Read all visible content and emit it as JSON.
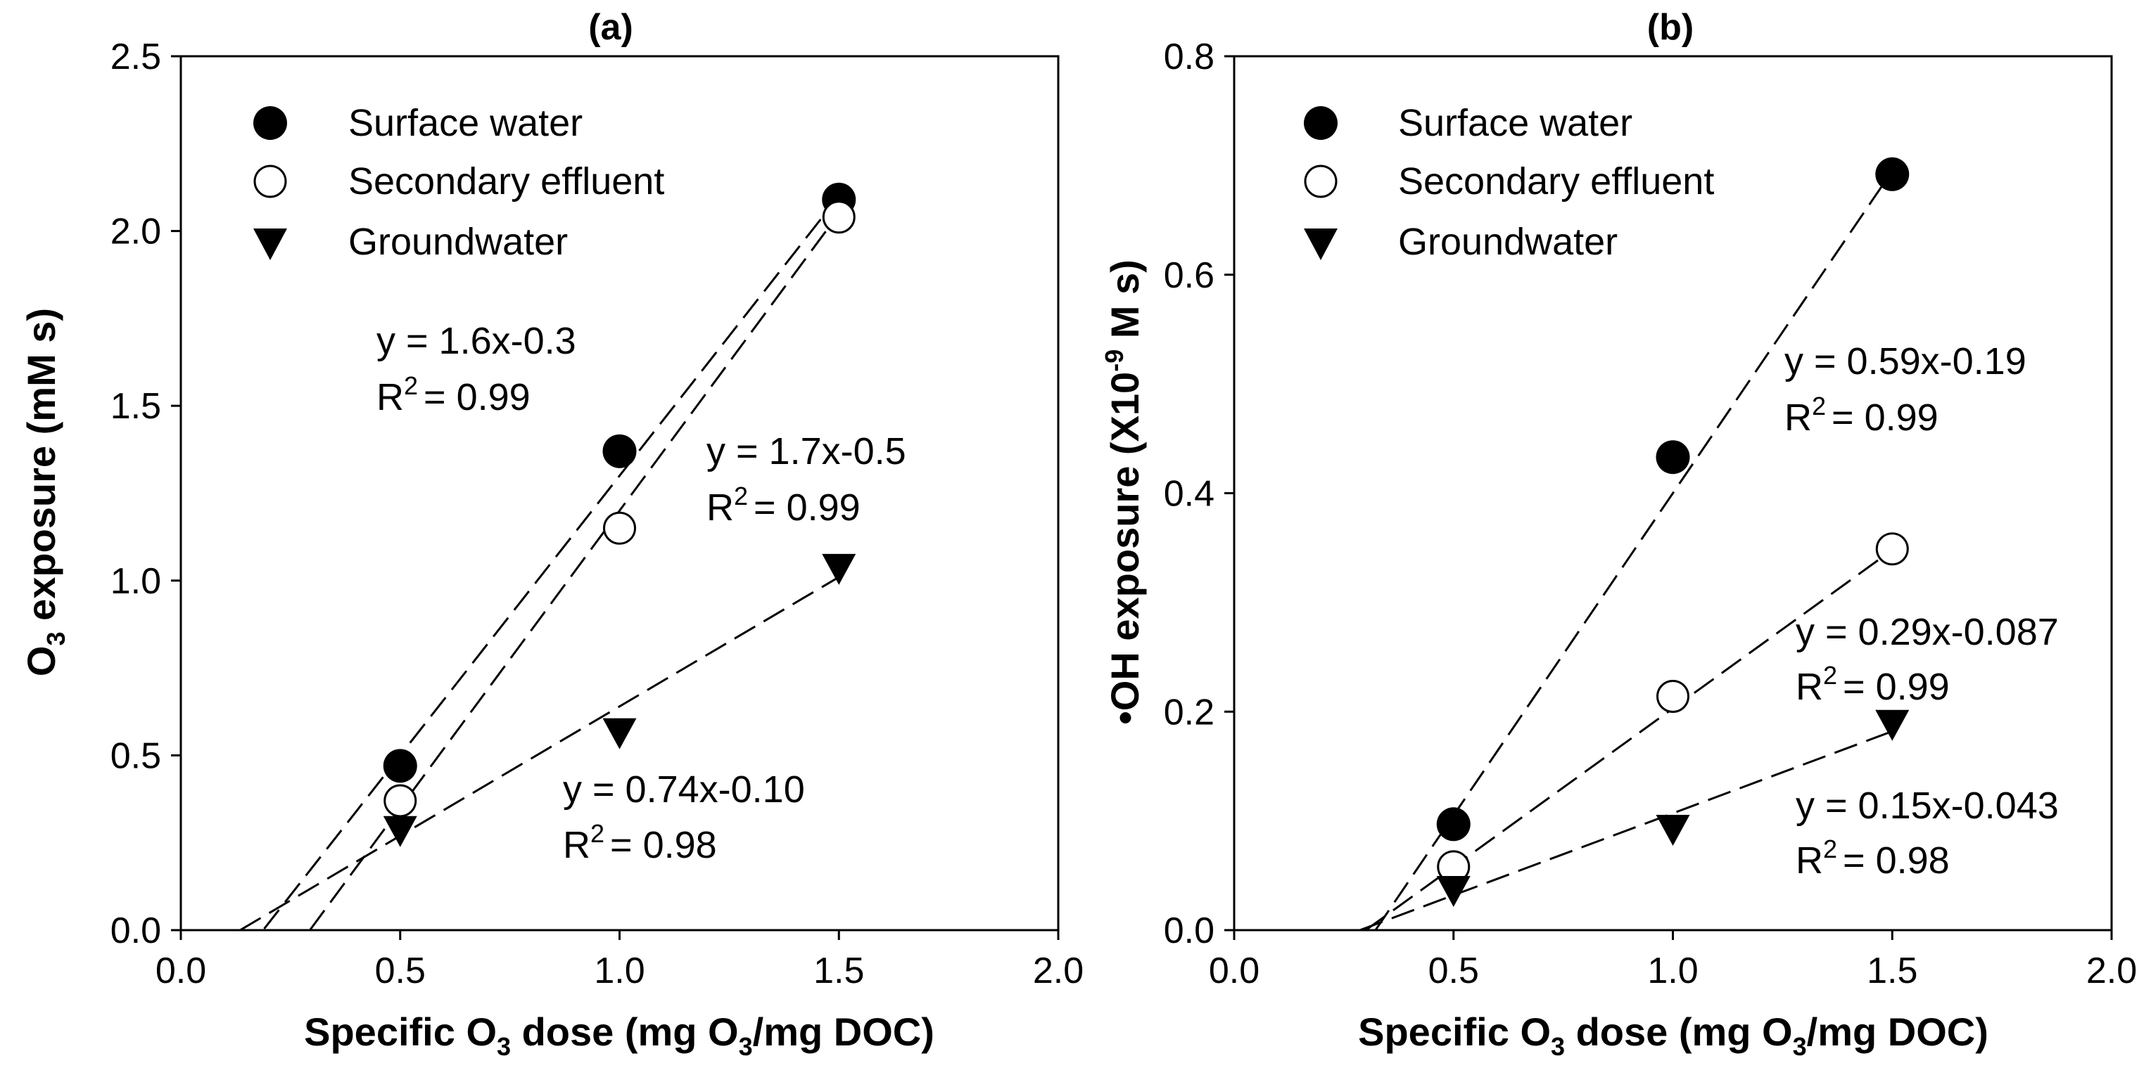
{
  "chart_data": [
    {
      "panel": "a",
      "type": "scatter",
      "title": "(a)",
      "xlabel": "Specific O3 dose (mg O3/mg DOC)",
      "ylabel": "O3 exposure (mM s)",
      "xlim": [
        0,
        2
      ],
      "ylim": [
        0,
        2.5
      ],
      "xticks": [
        "0.0",
        "0.5",
        "1.0",
        "1.5",
        "2.0"
      ],
      "yticks": [
        "0.0",
        "0.5",
        "1.0",
        "1.5",
        "2.0",
        "2.5"
      ],
      "legend_position": "top-left",
      "series": [
        {
          "name": "Surface water",
          "marker": "filled-circle",
          "x": [
            0.5,
            1.0,
            1.5
          ],
          "y": [
            0.47,
            1.37,
            2.09
          ],
          "fit": {
            "slope": 1.6,
            "intercept": -0.3,
            "x_range": [
              0.19,
              1.5
            ]
          }
        },
        {
          "name": "Secondary effluent",
          "marker": "open-circle",
          "x": [
            0.5,
            1.0,
            1.5
          ],
          "y": [
            0.37,
            1.15,
            2.04
          ],
          "fit": {
            "slope": 1.7,
            "intercept": -0.5,
            "x_range": [
              0.295,
              1.5
            ]
          }
        },
        {
          "name": "Groundwater",
          "marker": "filled-triangle-down",
          "x": [
            0.5,
            1.0,
            1.5
          ],
          "y": [
            0.29,
            0.57,
            1.04
          ],
          "fit": {
            "slope": 0.74,
            "intercept": -0.1,
            "x_range": [
              0.135,
              1.5
            ]
          }
        }
      ],
      "annotations": [
        {
          "eq": "y = 1.6x-0.3",
          "r2": "= 0.99"
        },
        {
          "eq": "y = 1.7x-0.5",
          "r2": "= 0.99"
        },
        {
          "eq": "y = 0.74x-0.10",
          "r2": "= 0.98"
        }
      ]
    },
    {
      "panel": "b",
      "type": "scatter",
      "title": "(b)",
      "xlabel": "Specific O3 dose (mg O3/mg DOC)",
      "ylabel": "•OH exposure (X10-9 M s)",
      "xlim": [
        0,
        2
      ],
      "ylim": [
        0,
        0.8
      ],
      "xticks": [
        "0.0",
        "0.5",
        "1.0",
        "1.5",
        "2.0"
      ],
      "yticks": [
        "0.0",
        "0.2",
        "0.4",
        "0.6",
        "0.8"
      ],
      "legend_position": "top-left",
      "series": [
        {
          "name": "Surface water",
          "marker": "filled-circle",
          "x": [
            0.5,
            1.0,
            1.5
          ],
          "y": [
            0.097,
            0.433,
            0.692
          ],
          "fit": {
            "slope": 0.59,
            "intercept": -0.19,
            "x_range": [
              0.322,
              1.5
            ]
          }
        },
        {
          "name": "Secondary effluent",
          "marker": "open-circle",
          "x": [
            0.5,
            1.0,
            1.5
          ],
          "y": [
            0.058,
            0.214,
            0.349
          ],
          "fit": {
            "slope": 0.29,
            "intercept": -0.087,
            "x_range": [
              0.3,
              1.5
            ]
          }
        },
        {
          "name": "Groundwater",
          "marker": "filled-triangle-down",
          "x": [
            0.5,
            1.0,
            1.5
          ],
          "y": [
            0.038,
            0.094,
            0.19
          ],
          "fit": {
            "slope": 0.15,
            "intercept": -0.043,
            "x_range": [
              0.287,
              1.5
            ]
          }
        }
      ],
      "annotations": [
        {
          "eq": "y = 0.59x-0.19",
          "r2": "= 0.99"
        },
        {
          "eq": "y = 0.29x-0.087",
          "r2": "= 0.99"
        },
        {
          "eq": "y = 0.15x-0.043",
          "r2": "= 0.98"
        }
      ]
    }
  ],
  "text": {
    "panel_a_title": "(a)",
    "panel_b_title": "(b)",
    "xlabel_specific": "Specific O",
    "xlabel_dose": " dose (mg O",
    "xlabel_tail": "/mg DOC)",
    "sub3": "3",
    "ylabel_a_O": "O",
    "ylabel_a_tail": " exposure (mM s)",
    "ylabel_b_head": "•OH exposure (X10",
    "ylabel_b_exp": "-9",
    "ylabel_b_tail": " M s)",
    "r2_R": "R",
    "sup2": "2"
  }
}
